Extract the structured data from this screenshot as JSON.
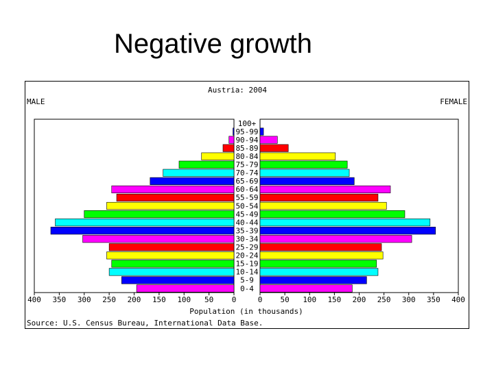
{
  "slide": {
    "title": "Negative growth"
  },
  "chart_data": {
    "type": "bar",
    "subtype": "population-pyramid",
    "title": "Austria: 2004",
    "left_label": "MALE",
    "right_label": "FEMALE",
    "xlabel": "Population (in thousands)",
    "source": "Source: U.S. Census Bureau, International Data Base.",
    "x_ticks_left": [
      "400",
      "350",
      "300",
      "250",
      "200",
      "150",
      "100",
      "50",
      "0"
    ],
    "x_ticks_right": [
      "0",
      "50",
      "100",
      "150",
      "200",
      "250",
      "300",
      "350",
      "400"
    ],
    "xlim": [
      0,
      400
    ],
    "categories": [
      "100+",
      "95-99",
      "90-94",
      "85-89",
      "80-84",
      "75-79",
      "70-74",
      "65-69",
      "60-64",
      "55-59",
      "50-54",
      "45-49",
      "40-44",
      "35-39",
      "30-34",
      "25-29",
      "20-24",
      "15-19",
      "10-14",
      "5-9",
      "0-4"
    ],
    "colors": [
      "#0000ff",
      "#0000ff",
      "#ff00ff",
      "#ff0000",
      "#ffff00",
      "#00ff00",
      "#00ffff",
      "#0000ff",
      "#ff00ff",
      "#ff0000",
      "#ffff00",
      "#00ff00",
      "#00ffff",
      "#0000ff",
      "#ff00ff",
      "#ff0000",
      "#ffff00",
      "#00ff00",
      "#00ffff",
      "#0000ff",
      "#ff00ff"
    ],
    "series": [
      {
        "name": "MALE",
        "values": [
          0,
          2,
          10,
          22,
          65,
          110,
          142,
          168,
          245,
          235,
          255,
          300,
          358,
          367,
          303,
          250,
          255,
          245,
          250,
          225,
          195
        ]
      },
      {
        "name": "FEMALE",
        "values": [
          0,
          7,
          35,
          57,
          152,
          176,
          180,
          190,
          263,
          238,
          255,
          292,
          343,
          354,
          306,
          245,
          248,
          235,
          238,
          215,
          186
        ]
      }
    ]
  }
}
